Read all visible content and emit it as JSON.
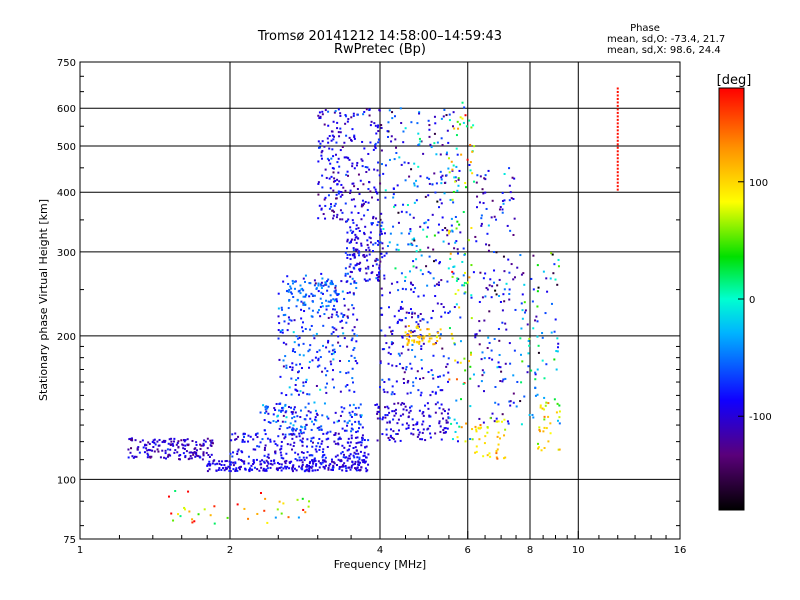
{
  "chart_data": {
    "type": "scatter",
    "title": "Tromsø 20141212 14:58:00–14:59:43",
    "subtitle": "RwPretec (Bp)",
    "xlabel": "Frequency [MHz]",
    "ylabel": "Stationary phase Virtual Height [km]",
    "x_scale": "log",
    "y_scale": "log",
    "xlim": [
      1,
      16
    ],
    "ylim": [
      75,
      750
    ],
    "x_ticks": [
      "1",
      "2",
      "4",
      "6",
      "8",
      "10",
      "16"
    ],
    "y_ticks": [
      "75",
      "100",
      "200",
      "300",
      "400",
      "500",
      "600",
      "750"
    ],
    "x_gridlines": [
      2,
      4,
      6,
      8,
      10
    ],
    "y_gridlines": [
      100,
      200,
      300,
      400,
      500,
      600
    ],
    "grid": true,
    "stats": {
      "heading": "Phase",
      "o_mode": "mean, sd,O: -73.4, 21.7",
      "x_mode": "mean, sd,X:  98.6, 24.4"
    },
    "colorbar": {
      "label": "[deg]",
      "ticks": [
        "100",
        "0",
        "-100"
      ],
      "tick_values": [
        100,
        0,
        -100
      ],
      "range": [
        -180,
        180
      ]
    },
    "points_note": "clusters of echoes, color = phase in degrees",
    "clusters": [
      {
        "f": [
          1.25,
          1.85
        ],
        "h": [
          110,
          122
        ],
        "phase": -105,
        "spread": 25,
        "n": 160
      },
      {
        "f": [
          1.8,
          3.8
        ],
        "h": [
          104,
          110
        ],
        "phase": -95,
        "spread": 20,
        "n": 260
      },
      {
        "f": [
          2.0,
          3.8
        ],
        "h": [
          110,
          125
        ],
        "phase": -90,
        "spread": 25,
        "n": 200
      },
      {
        "f": [
          2.3,
          3.7
        ],
        "h": [
          125,
          145
        ],
        "phase": -70,
        "spread": 40,
        "n": 150
      },
      {
        "f": [
          2.5,
          3.6
        ],
        "h": [
          150,
          270
        ],
        "phase": -70,
        "spread": 45,
        "n": 260
      },
      {
        "f": [
          2.6,
          3.3
        ],
        "h": [
          230,
          260
        ],
        "phase": -50,
        "spread": 20,
        "n": 60
      },
      {
        "f": [
          3.0,
          4.0
        ],
        "h": [
          350,
          600
        ],
        "phase": -95,
        "spread": 35,
        "n": 230
      },
      {
        "f": [
          3.4,
          4.1
        ],
        "h": [
          260,
          350
        ],
        "phase": -90,
        "spread": 30,
        "n": 140
      },
      {
        "f": [
          3.9,
          5.5
        ],
        "h": [
          120,
          145
        ],
        "phase": -100,
        "spread": 25,
        "n": 130
      },
      {
        "f": [
          4.0,
          5.5
        ],
        "h": [
          150,
          260
        ],
        "phase": -90,
        "spread": 35,
        "n": 170
      },
      {
        "f": [
          4.0,
          5.8
        ],
        "h": [
          260,
          600
        ],
        "phase": -70,
        "spread": 80,
        "n": 220
      },
      {
        "f": [
          4.5,
          5.3
        ],
        "h": [
          190,
          210
        ],
        "phase": 110,
        "spread": 30,
        "n": 50
      },
      {
        "f": [
          5.5,
          6.2
        ],
        "h": [
          120,
          620
        ],
        "phase": 40,
        "spread": 110,
        "n": 120
      },
      {
        "f": [
          6.2,
          7.5
        ],
        "h": [
          130,
          450
        ],
        "phase": -90,
        "spread": 60,
        "n": 150
      },
      {
        "f": [
          6.2,
          7.2
        ],
        "h": [
          110,
          135
        ],
        "phase": 100,
        "spread": 40,
        "n": 40
      },
      {
        "f": [
          7.5,
          9.2
        ],
        "h": [
          130,
          300
        ],
        "phase": -40,
        "spread": 110,
        "n": 90
      },
      {
        "f": [
          8.3,
          9.2
        ],
        "h": [
          115,
          145
        ],
        "phase": 90,
        "spread": 40,
        "n": 30
      },
      {
        "f": [
          1.4,
          2.9
        ],
        "h": [
          80,
          95
        ],
        "phase": 100,
        "spread": 120,
        "n": 40
      }
    ],
    "vertical_trace": {
      "f": 12.0,
      "h": [
        405,
        660
      ],
      "phase": 175,
      "n": 30
    }
  }
}
